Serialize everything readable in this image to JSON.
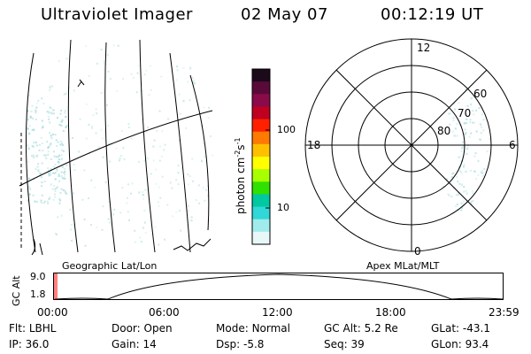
{
  "header": {
    "instrument": "Ultraviolet Imager",
    "date": "02 May 07",
    "time": "00:12:19 UT"
  },
  "colorbar": {
    "unit_label": "photon cm",
    "unit_sup1": "-2",
    "unit_mid": "s",
    "unit_sup2": "-1",
    "scale": "log",
    "tick_labels": [
      "100",
      "10"
    ],
    "colors": [
      "#1a0a1a",
      "#5a0a3a",
      "#8a0a4a",
      "#c00020",
      "#ff2000",
      "#ff7a00",
      "#ffc000",
      "#ffff00",
      "#a8ff00",
      "#30e000",
      "#00c8a0",
      "#30d8d8",
      "#a0ecec",
      "#e8f8f8"
    ]
  },
  "panels": {
    "left_label": "Geographic Lat/Lon",
    "right_label": "Apex MLat/MLT",
    "polar": {
      "mlt_labels": {
        "top": "12",
        "left": "18",
        "right": "6",
        "bottom": "0"
      },
      "mlat_labels": [
        "60",
        "70",
        "80"
      ]
    }
  },
  "timeline": {
    "y_axis_label": "GC Alt",
    "y_ticks": [
      "9.0",
      "1.8"
    ],
    "x_ticks": [
      "00:00",
      "06:00",
      "12:00",
      "18:00",
      "23:59"
    ]
  },
  "info": {
    "row1": [
      {
        "key": "Flt:",
        "value": "LBHL"
      },
      {
        "key": "Door:",
        "value": "Open"
      },
      {
        "key": "Mode:",
        "value": "Normal"
      },
      {
        "key": "GC Alt:",
        "value": "5.2 Re"
      },
      {
        "key": "GLat:",
        "value": "-43.1"
      }
    ],
    "row2": [
      {
        "key": "IP:",
        "value": "36.0"
      },
      {
        "key": "Gain:",
        "value": "14"
      },
      {
        "key": "Dsp:",
        "value": "-5.8"
      },
      {
        "key": "Seq:",
        "value": "39"
      },
      {
        "key": "GLon:",
        "value": "93.4"
      }
    ]
  },
  "colors": {
    "emission": "#a8dcdc",
    "lines": "#000000",
    "marker": "#ff0000"
  }
}
